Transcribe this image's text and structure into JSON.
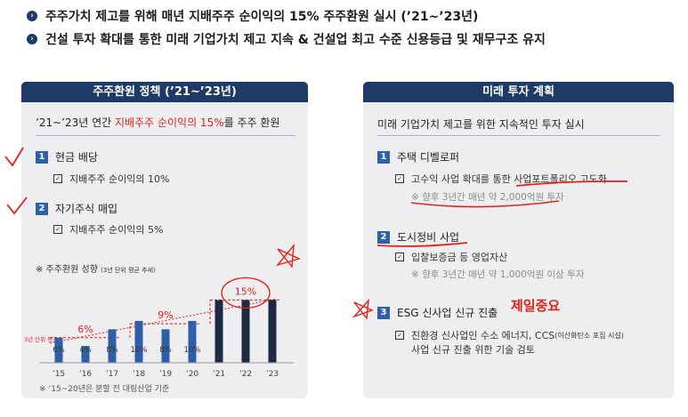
{
  "header": {
    "bullet1": "주주가치 제고를 위해 매년 지배주주 순이익의 15% 주주환원 실시 (’21~’23년)",
    "bullet2": "건설 투자 확대를 통한 미래 기업가치 제고 지속 & 건설업 최고 수준 신용등급 및 재무구조 유지"
  },
  "left": {
    "title": "주주환원 정책 (’21~’23년)",
    "subtitle_pre": "’21~’23년 연간 ",
    "subtitle_red": "지배주주 순이익의 15%",
    "subtitle_post": "를 주주 환원",
    "items": [
      {
        "num": "1",
        "label": "현금 배당",
        "sub": "지배주주 순이익의 10%"
      },
      {
        "num": "2",
        "label": "자기주식 매입",
        "sub": "지배주주 순이익의 5%"
      }
    ],
    "chart_title": "※ 주주환원 성향",
    "chart_title_small": "(3년 단위 평균 추세)",
    "footnote": "※ ’15~20년은 분할 전 대림산업 기준"
  },
  "right": {
    "title": "미래 투자 계획",
    "subtitle": "미래 기업가치 제고를 위한 지속적인 투자 실시",
    "items": [
      {
        "num": "1",
        "label": "주택 디벨로퍼",
        "sub": "고수익 사업 확대를 통한 사업포트폴리오 고도화",
        "note": "※ 향후 3년간 매년 약 2,000억원 투자"
      },
      {
        "num": "2",
        "label": "도시정비 사업",
        "sub": "입찰보증금 등 영업자산",
        "note": "※ 향후 3년간 매년 약 1,000억원 이상 투자"
      },
      {
        "num": "3",
        "label": "ESG 신사업 신규 진출",
        "sub": "친환경 신사업인 수소 에너지, CCS",
        "sub_sup": "(이산화탄소 포집 시설)",
        "sub2": "사업 신규 진출 위한 기술 검토"
      }
    ],
    "handwriting": "제일중요"
  },
  "colors": {
    "navy": "#1e3a66",
    "blue": "#2f5fa6",
    "dark_bar": "#1c2a44",
    "red": "#e2231a"
  },
  "chart_data": {
    "type": "bar",
    "categories": [
      "’15",
      "’16",
      "’17",
      "’18",
      "’19",
      "’20",
      "’21",
      "’22",
      "’23"
    ],
    "values": [
      6,
      4,
      8,
      10,
      8,
      10,
      15,
      15,
      15
    ],
    "bar_labels": [
      "6%",
      "4%",
      "8%",
      "10%",
      "8%",
      "10%",
      "",
      "",
      ""
    ],
    "period_averages": [
      {
        "label": "6%",
        "range": [
          "’15",
          "’17"
        ]
      },
      {
        "label": "9%",
        "range": [
          "’18",
          "’20"
        ]
      },
      {
        "label": "15%",
        "range": [
          "’21",
          "’23"
        ]
      }
    ],
    "legend_text": "3년 단위 평균",
    "ylim": [
      0,
      17
    ]
  }
}
